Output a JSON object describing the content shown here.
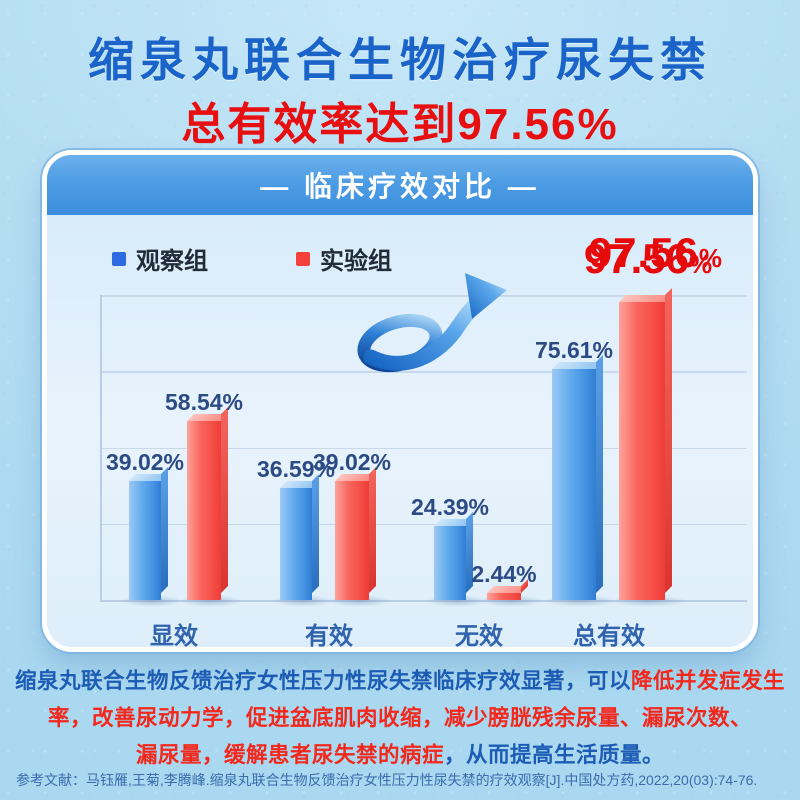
{
  "title": "缩泉丸联合生物治疗尿失禁",
  "subtitle": "总有效率达到97.56%",
  "card": {
    "header_title": "— 临床疗效对比 —",
    "legend": [
      {
        "label": "观察组",
        "color": "#2f6be0"
      },
      {
        "label": "实验组",
        "color": "#f4403a"
      }
    ],
    "highlight": {
      "value": "97.56",
      "unit": "%"
    }
  },
  "chart_data": {
    "type": "bar",
    "title": "临床疗效对比",
    "categories": [
      "显效",
      "有效",
      "无效",
      "总有效"
    ],
    "series": [
      {
        "name": "观察组",
        "color": "#4f9ce9",
        "values": [
          39.02,
          36.59,
          24.39,
          75.61
        ]
      },
      {
        "name": "实验组",
        "color": "#f7564f",
        "values": [
          58.54,
          39.02,
          2.44,
          97.56
        ]
      }
    ],
    "value_suffix": "%",
    "ylim": [
      0,
      100
    ],
    "gridline_step": 25,
    "grid": true,
    "legend_position": "top-left",
    "highlighted_value_label": "97.56%"
  },
  "description": {
    "lines": [
      [
        {
          "text": "缩泉丸联合生物反馈治疗女性压力性尿失禁临床疗效显著，可以",
          "color": "blue"
        },
        {
          "text": "降低并发症发生",
          "color": "red"
        }
      ],
      [
        {
          "text": "率，改善尿动力学，促进盆底肌肉收缩，减少膀胱残余尿量、漏尿次数、",
          "color": "red"
        }
      ],
      [
        {
          "text": "漏尿量，缓解患者尿失禁的病症",
          "color": "red"
        },
        {
          "text": "，从而提高生活质量。",
          "color": "blue"
        }
      ]
    ]
  },
  "reference": "参考文献：马钰雁,王菊,李腾峰.缩泉丸联合生物反馈治疗女性压力性尿失禁的疗效观察[J].中国处方药,2022,20(03):74-76.",
  "colors": {
    "title_blue": "#1a64c9",
    "accent_red": "#e80f10",
    "value_navy": "#2c4a84",
    "category_blue": "#2f63ae"
  }
}
